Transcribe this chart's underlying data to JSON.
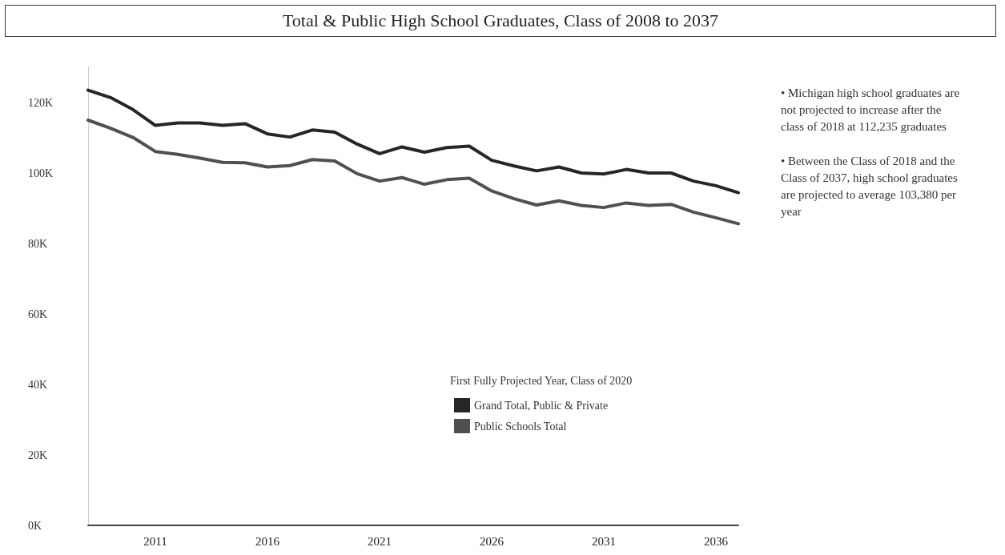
{
  "chart_data": {
    "type": "line",
    "title": "Total & Public High School Graduates, Class of 2008 to 2037",
    "x": [
      2008,
      2009,
      2010,
      2011,
      2012,
      2013,
      2014,
      2015,
      2016,
      2017,
      2018,
      2019,
      2020,
      2021,
      2022,
      2023,
      2024,
      2025,
      2026,
      2027,
      2028,
      2029,
      2030,
      2031,
      2032,
      2033,
      2034,
      2035,
      2036,
      2037
    ],
    "series": [
      {
        "name": "Grand Total, Public & Private",
        "color": "#262626",
        "values": [
          123500,
          121400,
          118000,
          113500,
          114200,
          114200,
          113500,
          114000,
          111100,
          110200,
          112200,
          111600,
          108200,
          105500,
          107400,
          105900,
          107200,
          107600,
          103600,
          102000,
          100600,
          101700,
          100000,
          99700,
          101000,
          100000,
          100000,
          97700,
          96400,
          94400
        ]
      },
      {
        "name": "Public Schools Total",
        "color": "#505050",
        "values": [
          115000,
          112700,
          110100,
          106100,
          105300,
          104200,
          103000,
          102900,
          101700,
          102100,
          103800,
          103400,
          99800,
          97700,
          98700,
          96800,
          98100,
          98500,
          94900,
          92700,
          90900,
          92100,
          90800,
          90200,
          91500,
          90800,
          91100,
          88900,
          87300,
          85600
        ]
      }
    ],
    "xlim": [
      2008,
      2037
    ],
    "xticks": [
      2011,
      2016,
      2021,
      2026,
      2031,
      2036
    ],
    "yticks": [
      {
        "value": 0,
        "label": "0K"
      },
      {
        "value": 20000,
        "label": "20K"
      },
      {
        "value": 40000,
        "label": "40K"
      },
      {
        "value": 60000,
        "label": "60K"
      },
      {
        "value": 80000,
        "label": "80K"
      },
      {
        "value": 100000,
        "label": "100K"
      },
      {
        "value": 120000,
        "label": "120K"
      }
    ],
    "ylim": [
      0,
      130000
    ],
    "legend_title": "First Fully Projected Year, Class of 2020",
    "legend": "bottom right",
    "grid": false,
    "marker": "none",
    "line_style": "solid",
    "annotations": [
      "• Michigan high school graduates are not projected to increase after the class of 2018 at 112,235 graduates",
      "• Between the Class of 2018 and the Class of 2037, high school graduates are projected to average 103,380 per year"
    ]
  }
}
